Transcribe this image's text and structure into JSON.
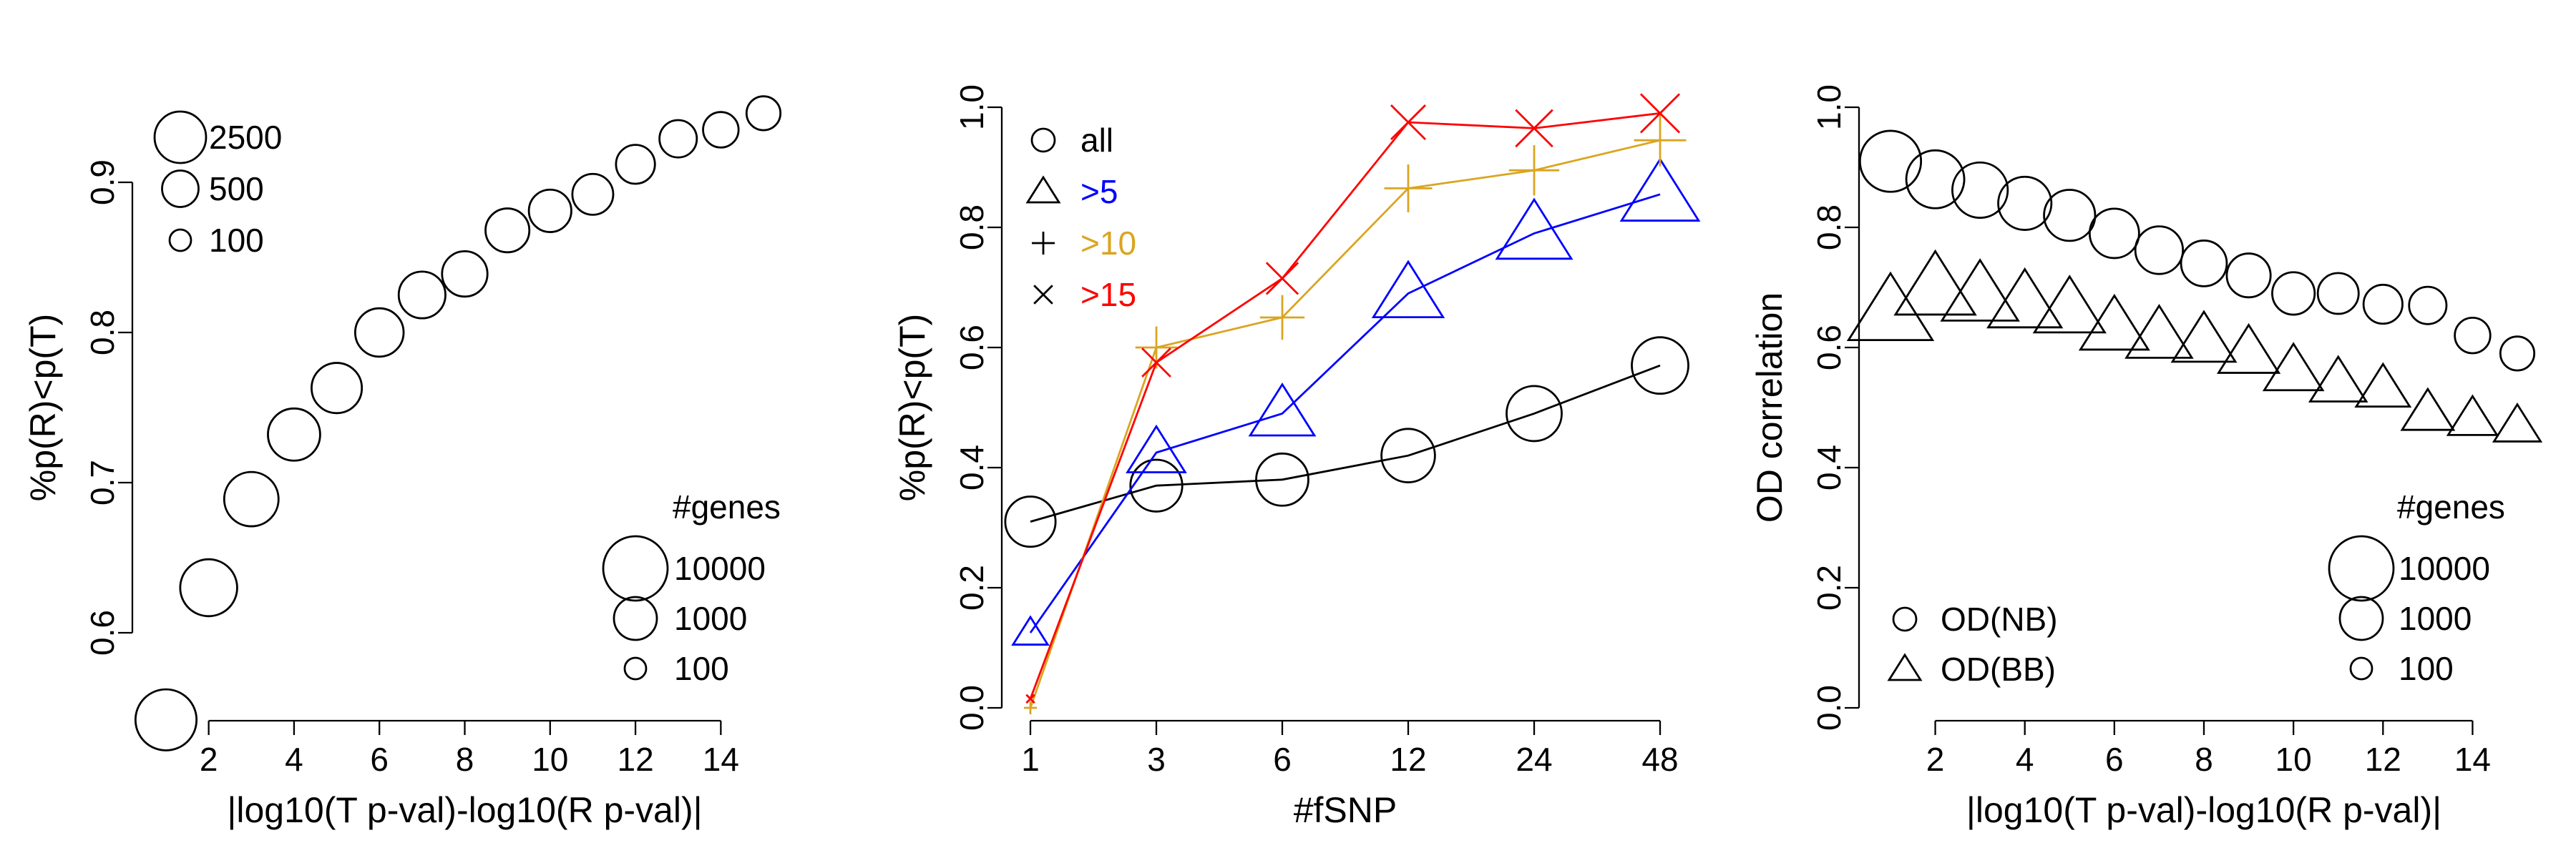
{
  "chart_data": [
    {
      "type": "scatter",
      "xlabel": "|log10(T p-val)-log10(R p-val)|",
      "ylabel": "%p(R)<p(T)",
      "xlim": [
        1,
        15
      ],
      "ylim": [
        0.55,
        0.95
      ],
      "x_ticks": [
        2,
        4,
        6,
        8,
        10,
        12,
        14
      ],
      "x_tick_labels": [
        "2",
        "4",
        "6",
        "8",
        "10",
        "12",
        "14"
      ],
      "y_ticks": [
        0.6,
        0.7,
        0.8,
        0.9
      ],
      "y_tick_labels": [
        "0.6",
        "0.7",
        "0.8",
        "0.9"
      ],
      "series": [
        {
          "marker": "circle",
          "color": "#000000",
          "x": [
            1,
            2,
            3,
            4,
            5,
            6,
            7,
            8,
            9,
            10,
            11,
            12,
            13,
            14,
            15
          ],
          "y": [
            0.542,
            0.63,
            0.689,
            0.732,
            0.763,
            0.8,
            0.825,
            0.839,
            0.868,
            0.881,
            0.892,
            0.912,
            0.929,
            0.935,
            0.946
          ],
          "genes": [
            7000,
            4500,
            3400,
            2700,
            2200,
            1800,
            1500,
            1300,
            1100,
            950,
            800,
            650,
            550,
            450,
            380
          ]
        }
      ],
      "legends": [
        {
          "placement": "top-left",
          "title": "",
          "entries": [
            "2500",
            "500",
            "100"
          ],
          "sizes": [
            2500,
            500,
            100
          ]
        },
        {
          "placement": "bottom-right",
          "title": "#genes",
          "entries": [
            "10000",
            "1000",
            "100"
          ],
          "sizes": [
            10000,
            1000,
            100
          ]
        }
      ]
    },
    {
      "type": "line",
      "xlabel": "#fSNP",
      "ylabel": "%p(R)<p(T)",
      "ylim": [
        0,
        1
      ],
      "categories": [
        "1",
        "3",
        "6",
        "12",
        "24",
        "48"
      ],
      "y_ticks": [
        0,
        0.2,
        0.4,
        0.6,
        0.8,
        1
      ],
      "y_tick_labels": [
        "0.0",
        "0.2",
        "0.4",
        "0.6",
        "0.8",
        "1.0"
      ],
      "series": [
        {
          "name": "all",
          "marker": "circle",
          "color": "#000000",
          "values": [
            0.31,
            0.37,
            0.38,
            0.42,
            0.49,
            0.57
          ],
          "genes": [
            2200,
            2600,
            2700,
            3100,
            3700,
            4300
          ]
        },
        {
          "name": ">5",
          "marker": "triangle",
          "color": "#0000ff",
          "values": [
            0.125,
            0.425,
            0.49,
            0.69,
            0.79,
            0.855
          ],
          "genes": [
            150,
            900,
            1500,
            2300,
            3300,
            4100
          ]
        },
        {
          "name": ">10",
          "marker": "plus",
          "color": "#daa520",
          "values": [
            0.0,
            0.6,
            0.65,
            0.865,
            0.895,
            0.945
          ],
          "genes": [
            40,
            900,
            1200,
            1700,
            2200,
            2700
          ]
        },
        {
          "name": ">15",
          "marker": "cross",
          "color": "#ff0000",
          "values": [
            0.015,
            0.575,
            0.715,
            0.975,
            0.965,
            0.99
          ],
          "genes": [
            30,
            450,
            700,
            1000,
            1400,
            1800
          ]
        }
      ],
      "legend": {
        "placement": "top-left",
        "entries": [
          "all",
          ">5",
          ">10",
          ">15"
        ]
      }
    },
    {
      "type": "scatter",
      "xlabel": "|log10(T p-val)-log10(R p-val)|",
      "ylabel": "OD correlation",
      "xlim": [
        1,
        15
      ],
      "ylim": [
        0,
        1
      ],
      "x_ticks": [
        2,
        4,
        6,
        8,
        10,
        12,
        14
      ],
      "x_tick_labels": [
        "2",
        "4",
        "6",
        "8",
        "10",
        "12",
        "14"
      ],
      "y_ticks": [
        0,
        0.2,
        0.4,
        0.6,
        0.8,
        1
      ],
      "y_tick_labels": [
        "0.0",
        "0.2",
        "0.4",
        "0.6",
        "0.8",
        "1.0"
      ],
      "series": [
        {
          "name": "OD(NB)",
          "marker": "circle",
          "color": "#000000",
          "x": [
            1,
            2,
            3,
            4,
            5,
            6,
            7,
            8,
            9,
            10,
            11,
            12,
            13,
            14,
            15
          ],
          "y": [
            0.91,
            0.88,
            0.862,
            0.84,
            0.82,
            0.79,
            0.762,
            0.74,
            0.72,
            0.69,
            0.69,
            0.672,
            0.67,
            0.62,
            0.59
          ],
          "genes": [
            7000,
            5000,
            3800,
            3000,
            2400,
            2000,
            1650,
            1350,
            1100,
            950,
            800,
            650,
            550,
            450,
            380
          ]
        },
        {
          "name": "OD(BB)",
          "marker": "triangle",
          "color": "#000000",
          "x": [
            1,
            2,
            3,
            4,
            5,
            6,
            7,
            8,
            9,
            10,
            11,
            12,
            13,
            14,
            15
          ],
          "y": [
            0.66,
            0.7,
            0.688,
            0.675,
            0.665,
            0.635,
            0.62,
            0.612,
            0.592,
            0.562,
            0.542,
            0.532,
            0.492,
            0.482,
            0.47
          ],
          "genes": [
            7000,
            5000,
            3800,
            3000,
            2400,
            2000,
            1650,
            1350,
            1100,
            950,
            800,
            650,
            550,
            450,
            380
          ]
        }
      ],
      "legends": [
        {
          "placement": "bottom-left",
          "title": "",
          "entries": [
            "OD(NB)",
            "OD(BB)"
          ]
        },
        {
          "placement": "bottom-right",
          "title": "#genes",
          "entries": [
            "10000",
            "1000",
            "100"
          ],
          "sizes": [
            10000,
            1000,
            100
          ]
        }
      ]
    }
  ]
}
